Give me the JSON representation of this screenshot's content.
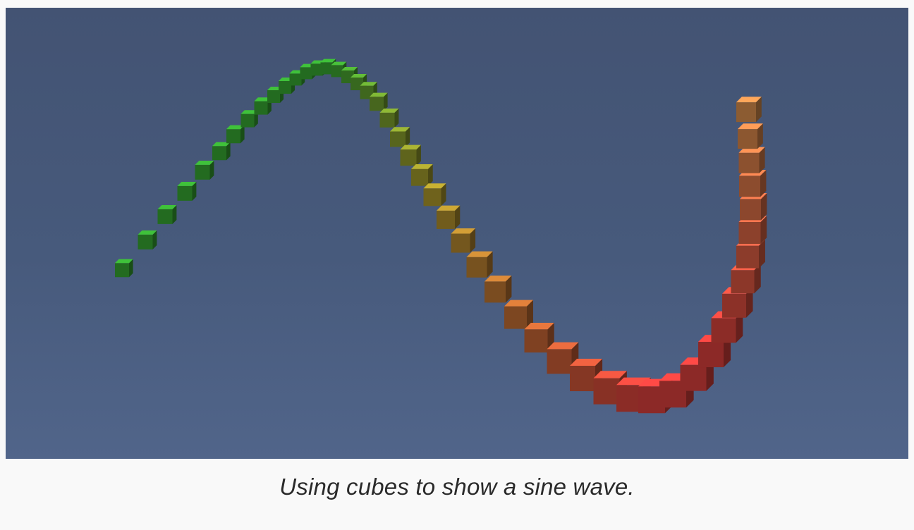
{
  "caption": "Using cubes to show a sine wave.",
  "scene": {
    "background_top": "#435373",
    "background_bottom": "#51658a",
    "color_start": "#3fc23a",
    "color_mid": "#c9b232",
    "color_low": "#ff4a46",
    "color_end": "#ffa75a"
  }
}
